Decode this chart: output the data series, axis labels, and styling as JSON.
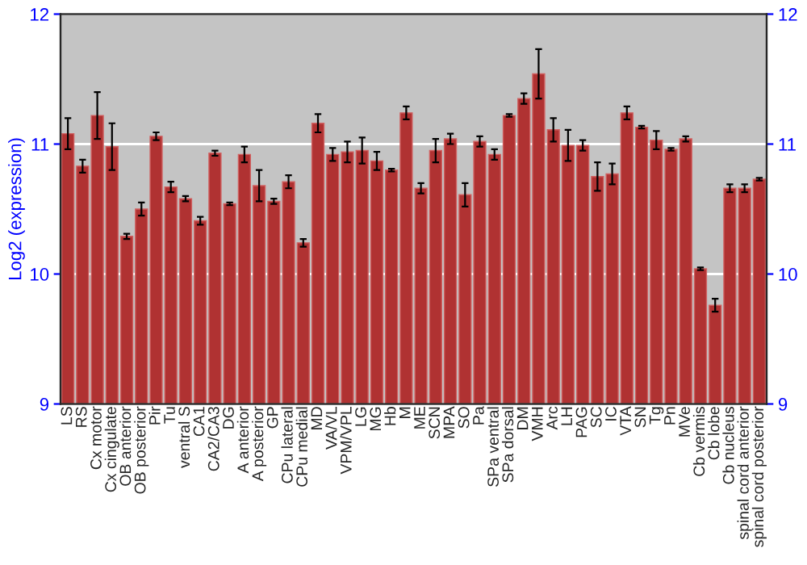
{
  "chart_data": {
    "type": "bar",
    "ylabel": "Log2 (expression)",
    "categories": [
      "LS",
      "RS",
      "Cx motor",
      "Cx cingulate",
      "OB anterior",
      "OB posterior",
      "Pir",
      "Tu",
      "ventral S",
      "CA1",
      "CA2/CA3",
      "DG",
      "A anterior",
      "A posterior",
      "GP",
      "CPu lateral",
      "CPu medial",
      "MD",
      "VA/VL",
      "VPM/VPL",
      "LG",
      "MG",
      "Hb",
      "M",
      "ME",
      "SCN",
      "MPA",
      "SO",
      "Pa",
      "SPa ventral",
      "SPa dorsal",
      "DM",
      "VMH",
      "Arc",
      "LH",
      "PAG",
      "SC",
      "IC",
      "VTA",
      "SN",
      "Tg",
      "Pn",
      "MVe",
      "Cb vermis",
      "Cb lobe",
      "Cb nucleus",
      "spinal cord anterior",
      "spinal cord posterior"
    ],
    "values": [
      11.08,
      10.83,
      11.22,
      10.98,
      10.29,
      10.5,
      11.06,
      10.67,
      10.58,
      10.41,
      10.93,
      10.54,
      10.92,
      10.68,
      10.56,
      10.71,
      10.24,
      11.16,
      10.92,
      10.94,
      10.95,
      10.87,
      10.8,
      11.24,
      10.66,
      10.95,
      11.04,
      10.61,
      11.02,
      10.92,
      11.22,
      11.35,
      11.54,
      11.11,
      10.99,
      10.99,
      10.75,
      10.77,
      11.24,
      11.13,
      11.03,
      10.96,
      11.04,
      10.04,
      9.76,
      10.66,
      10.66,
      10.73
    ],
    "errors": [
      0.12,
      0.05,
      0.18,
      0.18,
      0.02,
      0.05,
      0.03,
      0.04,
      0.02,
      0.03,
      0.02,
      0.01,
      0.06,
      0.12,
      0.02,
      0.05,
      0.03,
      0.07,
      0.05,
      0.08,
      0.1,
      0.07,
      0.01,
      0.05,
      0.04,
      0.09,
      0.04,
      0.09,
      0.04,
      0.04,
      0.01,
      0.04,
      0.19,
      0.09,
      0.12,
      0.04,
      0.11,
      0.08,
      0.05,
      0.01,
      0.07,
      0.01,
      0.02,
      0.01,
      0.05,
      0.03,
      0.03,
      0.01
    ],
    "color": "#b03232",
    "ylim": [
      9,
      12
    ],
    "yticks": [
      9,
      10,
      11,
      12
    ],
    "y2lim": [
      9,
      12
    ],
    "y2ticks": [
      9,
      10,
      11,
      12
    ],
    "grid": "y",
    "legend": false
  }
}
